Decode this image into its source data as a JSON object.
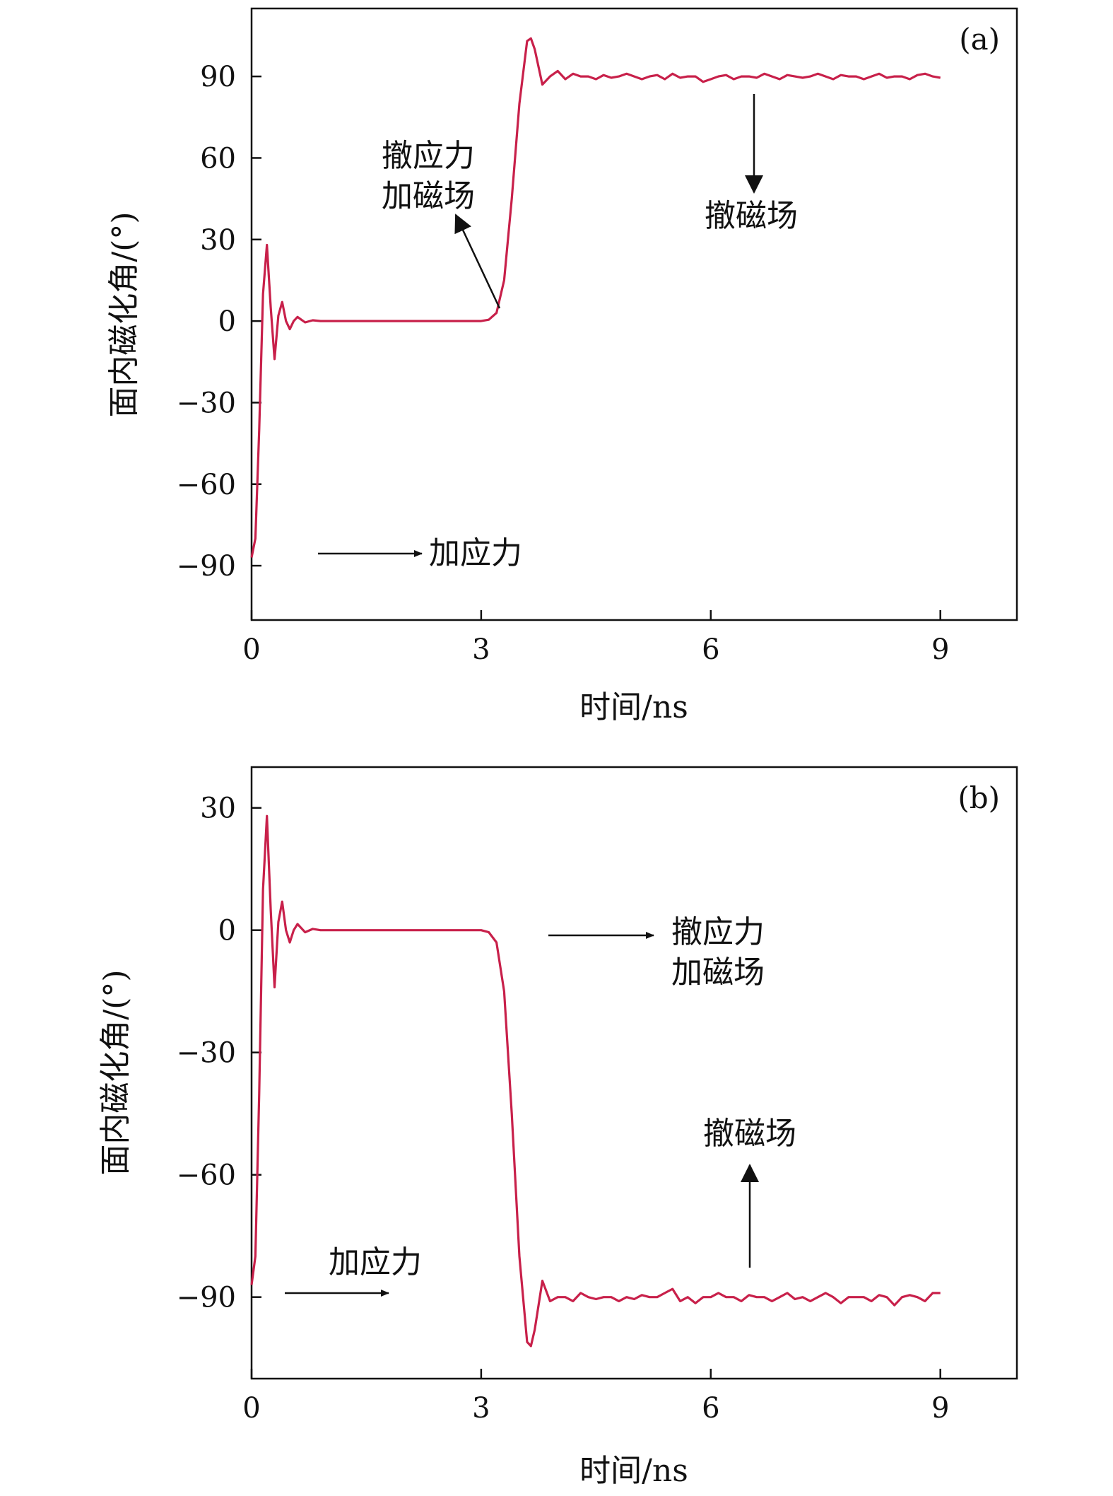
{
  "figure": {
    "curve_color": "#c8204a",
    "axis_color": "#111111"
  },
  "chart_data": [
    {
      "type": "line",
      "panel_label": "(a)",
      "xlabel": "时间/ns",
      "ylabel": "面内磁化角/(°)",
      "xlim": [
        0,
        10
      ],
      "ylim": [
        -110,
        115
      ],
      "xticks": [
        0,
        3,
        6,
        9
      ],
      "yticks": [
        -90,
        -60,
        -30,
        0,
        30,
        60,
        90
      ],
      "ytick_labels": [
        "−90",
        "−60",
        "−30",
        "0",
        "30",
        "60",
        "90"
      ],
      "grid": false,
      "series": [
        {
          "x": [
            0,
            0.05,
            0.1,
            0.15,
            0.2,
            0.25,
            0.3,
            0.35,
            0.4,
            0.45,
            0.5,
            0.55,
            0.6,
            0.65,
            0.7,
            0.8,
            0.9,
            1.0,
            1.5,
            2.0,
            2.5,
            3.0,
            3.1,
            3.2,
            3.3,
            3.4,
            3.5,
            3.6,
            3.65,
            3.7,
            3.8,
            3.9,
            4.0,
            4.1,
            4.2,
            4.3,
            4.4,
            4.5,
            4.6,
            4.7,
            4.8,
            4.9,
            5.0,
            5.1,
            5.2,
            5.3,
            5.4,
            5.5,
            5.6,
            5.7,
            5.8,
            5.9,
            6.0,
            6.1,
            6.2,
            6.3,
            6.4,
            6.5,
            6.6,
            6.7,
            6.8,
            6.9,
            7.0,
            7.1,
            7.2,
            7.3,
            7.4,
            7.5,
            7.6,
            7.7,
            7.8,
            7.9,
            8.0,
            8.1,
            8.2,
            8.3,
            8.4,
            8.5,
            8.6,
            8.7,
            8.8,
            8.9,
            9.0
          ],
          "y": [
            -87,
            -80,
            -40,
            10,
            28,
            5,
            -14,
            2,
            7,
            0,
            -3,
            0,
            1.5,
            0.5,
            -0.5,
            0.3,
            0,
            0,
            0,
            0,
            0,
            0,
            0.5,
            3,
            15,
            45,
            80,
            103,
            104,
            100,
            87,
            90,
            92,
            89,
            91,
            90,
            90,
            89,
            90.5,
            89.5,
            90,
            91,
            90,
            89,
            90,
            90.5,
            89,
            91,
            89.5,
            90,
            90,
            88,
            89,
            90,
            90.5,
            89,
            90,
            90,
            89.5,
            91,
            90,
            89,
            90.5,
            90,
            89.5,
            90,
            91,
            90,
            89,
            90.5,
            90,
            90,
            89,
            90,
            91,
            89.5,
            90,
            90,
            89,
            90.5,
            91,
            90,
            89.5
          ]
        }
      ],
      "annotations": {
        "apply_stress": "加应力",
        "remove_stress_line1": "撤应力",
        "remove_stress_line2": "加磁场",
        "remove_field": "撤磁场"
      }
    },
    {
      "type": "line",
      "panel_label": "(b)",
      "xlabel": "时间/ns",
      "ylabel": "面内磁化角/(°)",
      "xlim": [
        0,
        10
      ],
      "ylim": [
        -110,
        40
      ],
      "xticks": [
        0,
        3,
        6,
        9
      ],
      "yticks": [
        -90,
        -60,
        -30,
        0,
        30
      ],
      "ytick_labels": [
        "−90",
        "−60",
        "−30",
        "0",
        "30"
      ],
      "grid": false,
      "series": [
        {
          "x": [
            0,
            0.05,
            0.1,
            0.15,
            0.2,
            0.25,
            0.3,
            0.35,
            0.4,
            0.45,
            0.5,
            0.55,
            0.6,
            0.65,
            0.7,
            0.8,
            0.9,
            1.0,
            1.5,
            2.0,
            2.5,
            3.0,
            3.1,
            3.2,
            3.3,
            3.4,
            3.5,
            3.6,
            3.65,
            3.7,
            3.8,
            3.9,
            4.0,
            4.1,
            4.2,
            4.3,
            4.4,
            4.5,
            4.6,
            4.7,
            4.8,
            4.9,
            5.0,
            5.1,
            5.2,
            5.3,
            5.4,
            5.5,
            5.6,
            5.7,
            5.8,
            5.9,
            6.0,
            6.1,
            6.2,
            6.3,
            6.4,
            6.5,
            6.6,
            6.7,
            6.8,
            6.9,
            7.0,
            7.1,
            7.2,
            7.3,
            7.4,
            7.5,
            7.6,
            7.7,
            7.8,
            7.9,
            8.0,
            8.1,
            8.2,
            8.3,
            8.4,
            8.5,
            8.6,
            8.7,
            8.8,
            8.9,
            9.0
          ],
          "y": [
            -87,
            -80,
            -40,
            10,
            28,
            5,
            -14,
            2,
            7,
            0,
            -3,
            0,
            1.5,
            0.5,
            -0.5,
            0.3,
            0,
            0,
            0,
            0,
            0,
            0,
            -0.5,
            -3,
            -15,
            -45,
            -80,
            -101,
            -102,
            -98,
            -86,
            -91,
            -90,
            -90,
            -91,
            -89,
            -90,
            -90.5,
            -90,
            -90,
            -91,
            -90,
            -90.5,
            -89.5,
            -90,
            -90,
            -89,
            -88,
            -91,
            -90,
            -91.5,
            -90,
            -90,
            -89,
            -90,
            -90,
            -91,
            -89.5,
            -90,
            -90,
            -91,
            -90,
            -89,
            -90.5,
            -90,
            -91,
            -90,
            -89,
            -90,
            -91.5,
            -90,
            -90,
            -90,
            -91,
            -89.5,
            -90,
            -92,
            -90,
            -89.5,
            -90,
            -91,
            -89,
            -89
          ]
        }
      ],
      "annotations": {
        "apply_stress": "加应力",
        "remove_stress_line1": "撤应力",
        "remove_stress_line2": "加磁场",
        "remove_field": "撤磁场"
      }
    }
  ]
}
